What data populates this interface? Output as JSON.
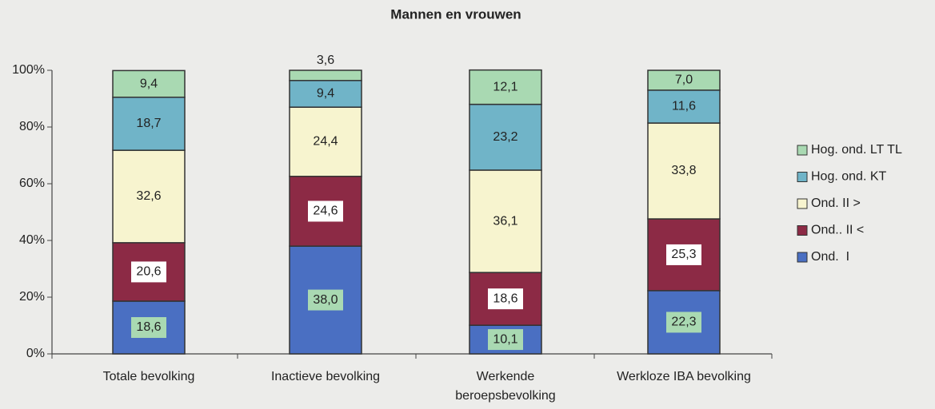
{
  "chart_data": {
    "type": "stacked_bar",
    "title": "Mannen en vrouwen",
    "categories": [
      "Totale bevolking",
      "Inactieve bevolking",
      "Werkende\nberoepsbevolking",
      "Werkloze IBA bevolking"
    ],
    "series": [
      {
        "name": "Ond.  I",
        "color": "#4a6fc2",
        "values": [
          18.6,
          38.0,
          10.1,
          22.3
        ],
        "value_labels": [
          "18,6",
          "38,0",
          "10,1",
          "22,3"
        ]
      },
      {
        "name": "Ond.. II <",
        "color": "#8c2a45",
        "values": [
          20.6,
          24.6,
          18.6,
          25.3
        ],
        "value_labels": [
          "20,6",
          "24,6",
          "18,6",
          "25,3"
        ]
      },
      {
        "name": "Ond. II >",
        "color": "#f7f4cf",
        "values": [
          32.6,
          24.4,
          36.1,
          33.8
        ],
        "value_labels": [
          "32,6",
          "24,4",
          "36,1",
          "33,8"
        ]
      },
      {
        "name": "Hog. ond. KT",
        "color": "#70b4c8",
        "values": [
          18.7,
          9.4,
          23.2,
          11.6
        ],
        "value_labels": [
          "18,7",
          "9,4",
          "23,2",
          "11,6"
        ]
      },
      {
        "name": "Hog. ond. LT TL",
        "color": "#a9d9b2",
        "values": [
          9.4,
          3.6,
          12.1,
          7.0
        ],
        "value_labels": [
          "9,4",
          "3,6",
          "12,1",
          "7,0"
        ]
      }
    ],
    "ylim": [
      0,
      100
    ],
    "yticks": [
      {
        "value": 0,
        "label": "0%"
      },
      {
        "value": 20,
        "label": "20%"
      },
      {
        "value": 40,
        "label": "40%"
      },
      {
        "value": 60,
        "label": "60%"
      },
      {
        "value": 80,
        "label": "80%"
      },
      {
        "value": 100,
        "label": "100%"
      }
    ],
    "legend": "right"
  }
}
